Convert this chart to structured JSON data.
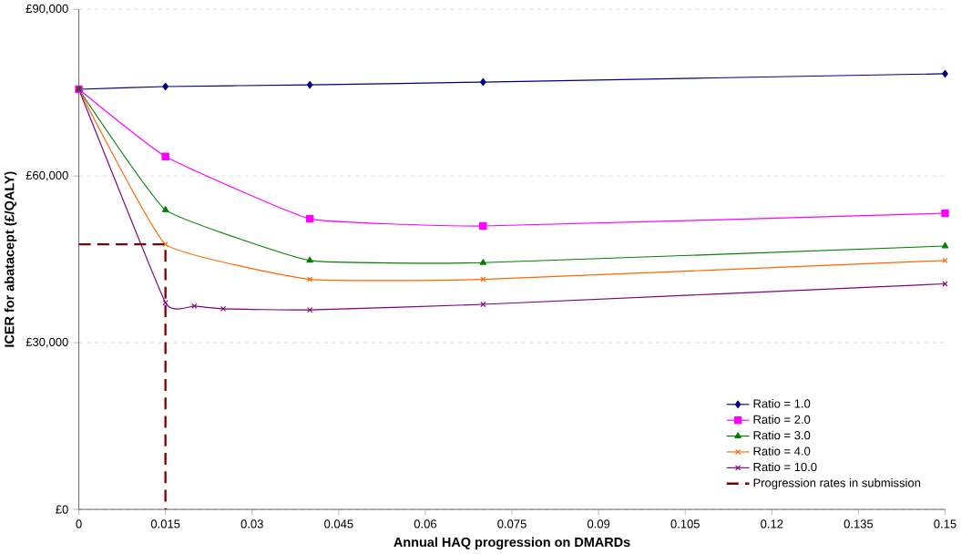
{
  "chart_data": {
    "type": "line",
    "xlabel": "Annual HAQ progression on DMARDs",
    "ylabel": "ICER for abatacept (£/QALY)",
    "xlim": [
      0,
      0.15
    ],
    "xticks": [
      0,
      0.015,
      0.03,
      0.045,
      0.06,
      0.075,
      0.09,
      0.105,
      0.12,
      0.135,
      0.15
    ],
    "ylim": [
      0,
      90000
    ],
    "yticks": [
      {
        "value": 0,
        "label": "£0"
      },
      {
        "value": 30000,
        "label": "£30,000"
      },
      {
        "value": 60000,
        "label": "£60,000"
      },
      {
        "value": 90000,
        "label": "£90,000"
      }
    ],
    "grid": "y",
    "legend": "bottom right",
    "series": [
      {
        "name": "Ratio = 1.0",
        "color": "#000080",
        "marker": "diamond",
        "x": [
          0,
          0.015,
          0.04,
          0.07,
          0.15
        ],
        "values": [
          75600,
          76100,
          76400,
          76900,
          78400
        ]
      },
      {
        "name": "Ratio = 2.0",
        "color": "#ff00ff",
        "marker": "square",
        "x": [
          0,
          0.015,
          0.04,
          0.07,
          0.15
        ],
        "values": [
          75600,
          63500,
          52300,
          51000,
          53300
        ]
      },
      {
        "name": "Ratio = 3.0",
        "color": "#008000",
        "marker": "triangle",
        "x": [
          0,
          0.015,
          0.04,
          0.07,
          0.15
        ],
        "values": [
          75600,
          53900,
          44800,
          44400,
          47400
        ]
      },
      {
        "name": "Ratio = 4.0",
        "color": "#ff6600",
        "marker": "cross",
        "x": [
          0,
          0.015,
          0.04,
          0.07,
          0.15
        ],
        "values": [
          75600,
          47700,
          41400,
          41400,
          44800
        ]
      },
      {
        "name": "Ratio = 10.0",
        "color": "#800080",
        "marker": "cross",
        "x": [
          0,
          0.015,
          0.02,
          0.025,
          0.04,
          0.07,
          0.15
        ],
        "values": [
          75600,
          37200,
          36600,
          36100,
          35900,
          36900,
          40600
        ]
      },
      {
        "name": "Progression rates in submission",
        "color": "#800000",
        "marker": "none",
        "line_style": "dashed",
        "x": [
          0,
          0.015,
          0.015
        ],
        "values": [
          47700,
          47700,
          0
        ]
      }
    ]
  }
}
